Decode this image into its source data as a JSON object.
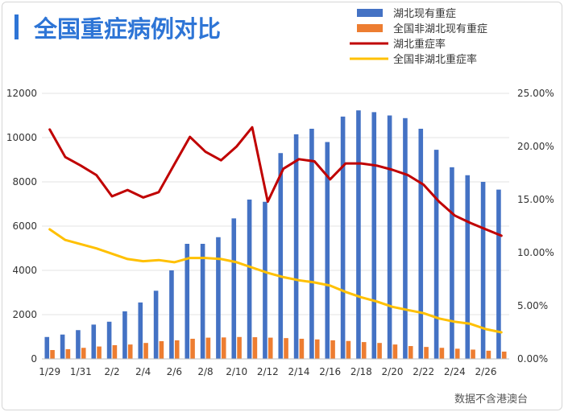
{
  "chart_data": {
    "type": "bar+line",
    "title": "全国重症病例对比",
    "note": "数据不含港澳台",
    "left_axis": {
      "min": 0,
      "max": 12000,
      "ticks": [
        "0",
        "2000",
        "4000",
        "6000",
        "8000",
        "10000",
        "12000"
      ]
    },
    "right_axis": {
      "min": 0,
      "max": 0.25,
      "ticks": [
        "0.00%",
        "5.00%",
        "10.00%",
        "15.00%",
        "20.00%",
        "25.00%"
      ]
    },
    "categories": [
      "1/29",
      "1/30",
      "1/31",
      "2/1",
      "2/2",
      "2/3",
      "2/4",
      "2/5",
      "2/6",
      "2/7",
      "2/8",
      "2/9",
      "2/10",
      "2/11",
      "2/12",
      "2/13",
      "2/14",
      "2/15",
      "2/16",
      "2/17",
      "2/18",
      "2/19",
      "2/20",
      "2/21",
      "2/22",
      "2/23",
      "2/24",
      "2/25",
      "2/26",
      "2/27"
    ],
    "x_tick_labels": [
      "1/29",
      "1/31",
      "2/2",
      "2/4",
      "2/6",
      "2/8",
      "2/10",
      "2/12",
      "2/14",
      "2/16",
      "2/18",
      "2/20",
      "2/22",
      "2/24",
      "2/26"
    ],
    "legend_position": "top-right",
    "series": [
      {
        "name": "湖北现有重症",
        "type": "bar",
        "axis": "left",
        "color": "#4472c4",
        "values": [
          990,
          1100,
          1300,
          1550,
          1680,
          2150,
          2550,
          3080,
          4000,
          5200,
          5200,
          5500,
          6350,
          7200,
          7100,
          9300,
          10150,
          10400,
          9800,
          10950,
          11230,
          11150,
          11000,
          10880,
          10400,
          9450,
          8660,
          8300,
          8000,
          7650
        ]
      },
      {
        "name": "全国非湖北现有重症",
        "type": "bar",
        "axis": "left",
        "color": "#ed7d31",
        "values": [
          400,
          440,
          500,
          560,
          620,
          650,
          720,
          800,
          840,
          910,
          960,
          970,
          990,
          980,
          960,
          940,
          910,
          880,
          840,
          810,
          760,
          720,
          650,
          580,
          540,
          500,
          460,
          420,
          370,
          330
        ]
      },
      {
        "name": "湖北重症率",
        "type": "line",
        "axis": "right",
        "color": "#c00000",
        "values": [
          0.216,
          0.19,
          0.182,
          0.173,
          0.153,
          0.159,
          0.152,
          0.157,
          0.183,
          0.209,
          0.195,
          0.187,
          0.2,
          0.218,
          0.148,
          0.179,
          0.188,
          0.186,
          0.169,
          0.184,
          0.184,
          0.182,
          0.178,
          0.173,
          0.164,
          0.148,
          0.135,
          0.128,
          0.122,
          0.116
        ]
      },
      {
        "name": "全国非湖北重症率",
        "type": "line",
        "axis": "right",
        "color": "#ffc000",
        "values": [
          0.122,
          0.112,
          0.108,
          0.104,
          0.099,
          0.094,
          0.092,
          0.093,
          0.091,
          0.095,
          0.095,
          0.094,
          0.091,
          0.086,
          0.081,
          0.077,
          0.074,
          0.072,
          0.069,
          0.063,
          0.058,
          0.054,
          0.049,
          0.046,
          0.043,
          0.038,
          0.035,
          0.033,
          0.028,
          0.025
        ]
      }
    ]
  }
}
